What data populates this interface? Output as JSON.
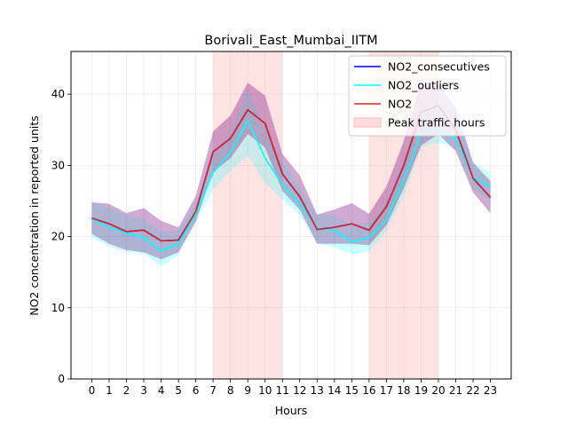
{
  "chart_data": {
    "type": "line",
    "title": "Borivali_East_Mumbai_IITM",
    "xlabel": "Hours",
    "ylabel": "NO2 concentration in reported units",
    "x": [
      0,
      1,
      2,
      3,
      4,
      5,
      6,
      7,
      8,
      9,
      10,
      11,
      12,
      13,
      14,
      15,
      16,
      17,
      18,
      19,
      20,
      21,
      22,
      23
    ],
    "x_tick_labels": [
      "0",
      "1",
      "2",
      "3",
      "4",
      "5",
      "6",
      "7",
      "8",
      "9",
      "10",
      "11",
      "12",
      "13",
      "14",
      "15",
      "16",
      "17",
      "18",
      "19",
      "20",
      "21",
      "22",
      "23"
    ],
    "xlim": [
      -1.2,
      24.2
    ],
    "ylim": [
      0,
      46
    ],
    "y_ticks": [
      0,
      10,
      20,
      30,
      40
    ],
    "y_tick_labels": [
      "0",
      "10",
      "20",
      "30",
      "40"
    ],
    "grid": true,
    "legend_position": "top-right",
    "shaded_regions": [
      {
        "name": "Peak traffic hours",
        "x0": 7,
        "x1": 11,
        "color": "#ff9999"
      },
      {
        "name": "Peak traffic hours",
        "x0": 16,
        "x1": 20,
        "color": "#ff9999"
      }
    ],
    "series": [
      {
        "name": "NO2_consecutives",
        "color": "#0000ff",
        "values": [
          22.6,
          21.8,
          20.7,
          20.9,
          19.4,
          19.5,
          23.5,
          31.9,
          33.8,
          37.8,
          35.9,
          28.8,
          25.6,
          21.0,
          21.3,
          21.8,
          20.9,
          24.2,
          30.0,
          37.5,
          38.4,
          35.0,
          28.2,
          25.5
        ],
        "band_lower": [
          20.4,
          19.0,
          18.1,
          17.8,
          16.8,
          17.8,
          22.1,
          29.1,
          31.0,
          34.4,
          32.5,
          26.4,
          23.8,
          19.0,
          19.0,
          19.0,
          18.8,
          21.6,
          26.8,
          32.8,
          34.4,
          32.0,
          26.2,
          23.3
        ],
        "band_upper": [
          24.8,
          24.6,
          23.3,
          24.0,
          22.2,
          21.3,
          25.7,
          34.8,
          37.0,
          41.6,
          39.8,
          31.6,
          28.6,
          23.1,
          23.8,
          24.7,
          23.2,
          27.0,
          33.4,
          41.8,
          41.4,
          38.1,
          30.4,
          27.8
        ]
      },
      {
        "name": "NO2_outliers",
        "color": "#00ffff",
        "values": [
          22.5,
          21.3,
          20.5,
          19.8,
          18.0,
          19.0,
          23.2,
          29.0,
          31.8,
          36.3,
          31.0,
          27.3,
          24.6,
          21.2,
          20.8,
          19.3,
          19.8,
          22.4,
          28.0,
          34.5,
          35.0,
          33.8,
          28.3,
          27.0
        ],
        "band_lower": [
          20.0,
          18.6,
          17.8,
          17.6,
          15.8,
          17.4,
          22.0,
          26.6,
          29.2,
          31.4,
          27.5,
          25.2,
          23.0,
          19.1,
          18.5,
          17.5,
          17.9,
          20.8,
          25.6,
          32.5,
          33.2,
          32.4,
          26.8,
          25.0
        ],
        "band_upper": [
          24.8,
          24.0,
          23.0,
          22.4,
          20.8,
          20.8,
          24.6,
          31.6,
          34.6,
          40.8,
          35.0,
          30.4,
          26.8,
          23.0,
          23.0,
          21.6,
          22.0,
          24.8,
          30.8,
          38.0,
          38.4,
          37.2,
          30.4,
          29.0
        ]
      },
      {
        "name": "NO2",
        "color": "#dd2222",
        "values": [
          22.6,
          21.8,
          20.7,
          20.9,
          19.4,
          19.5,
          23.5,
          31.9,
          33.8,
          37.8,
          35.9,
          28.8,
          25.6,
          21.0,
          21.3,
          21.8,
          20.9,
          24.2,
          30.0,
          37.5,
          38.4,
          35.0,
          28.2,
          25.5
        ],
        "band_lower": [
          20.4,
          19.0,
          18.1,
          17.8,
          16.8,
          17.8,
          22.1,
          29.1,
          31.0,
          34.4,
          32.5,
          26.4,
          23.8,
          19.0,
          19.0,
          19.0,
          18.8,
          21.6,
          26.8,
          32.8,
          34.4,
          32.0,
          26.2,
          23.3
        ],
        "band_upper": [
          24.8,
          24.6,
          23.3,
          24.0,
          22.2,
          21.3,
          25.7,
          34.8,
          37.0,
          41.6,
          39.8,
          31.6,
          28.6,
          23.1,
          23.8,
          24.7,
          23.2,
          27.0,
          33.4,
          41.8,
          41.4,
          38.1,
          30.4,
          27.8
        ]
      }
    ],
    "legend_entries": [
      {
        "label": "NO2_consecutives",
        "color": "#0000ff",
        "kind": "line"
      },
      {
        "label": "NO2_outliers",
        "color": "#00ffff",
        "kind": "line"
      },
      {
        "label": "NO2",
        "color": "#dd2222",
        "kind": "line"
      },
      {
        "label": "Peak traffic hours",
        "color": "#ffdddd",
        "kind": "patch"
      }
    ]
  }
}
